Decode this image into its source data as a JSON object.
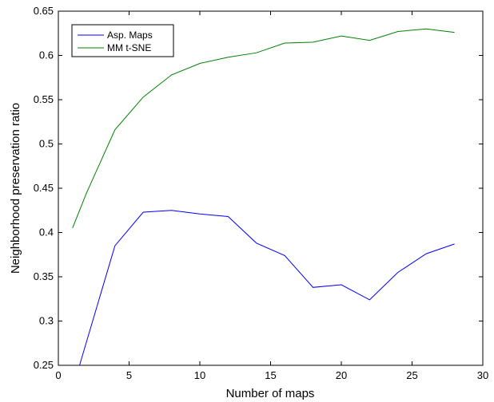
{
  "chart_data": {
    "type": "line",
    "title": "",
    "xlabel": "Number of maps",
    "ylabel": "Neighborhood preservation ratio",
    "xlim": [
      0,
      30
    ],
    "ylim": [
      0.25,
      0.65
    ],
    "xticks": [
      0,
      5,
      10,
      15,
      20,
      25,
      30
    ],
    "yticks": [
      0.25,
      0.3,
      0.35,
      0.4,
      0.45,
      0.5,
      0.55,
      0.6,
      0.65
    ],
    "xtick_labels": [
      "0",
      "5",
      "10",
      "15",
      "20",
      "25",
      "30"
    ],
    "ytick_labels": [
      "0.25",
      "0.3",
      "0.35",
      "0.4",
      "0.45",
      "0.5",
      "0.55",
      "0.6",
      "0.65"
    ],
    "grid": false,
    "legend_position": "top-left",
    "series": [
      {
        "name": "Asp. Maps",
        "color": "#0000ff",
        "x": [
          1.5,
          4,
          6,
          8,
          10,
          12,
          14,
          16,
          18,
          20,
          22,
          24,
          26,
          28
        ],
        "y": [
          0.25,
          0.385,
          0.423,
          0.425,
          0.421,
          0.418,
          0.388,
          0.374,
          0.338,
          0.341,
          0.324,
          0.355,
          0.376,
          0.387
        ]
      },
      {
        "name": "MM t-SNE",
        "color": "#008000",
        "x": [
          1,
          2,
          4,
          6,
          8,
          10,
          12,
          14,
          16,
          18,
          20,
          22,
          24,
          26,
          28
        ],
        "y": [
          0.405,
          0.445,
          0.516,
          0.553,
          0.578,
          0.591,
          0.598,
          0.603,
          0.614,
          0.615,
          0.622,
          0.617,
          0.627,
          0.63,
          0.626
        ]
      }
    ]
  }
}
